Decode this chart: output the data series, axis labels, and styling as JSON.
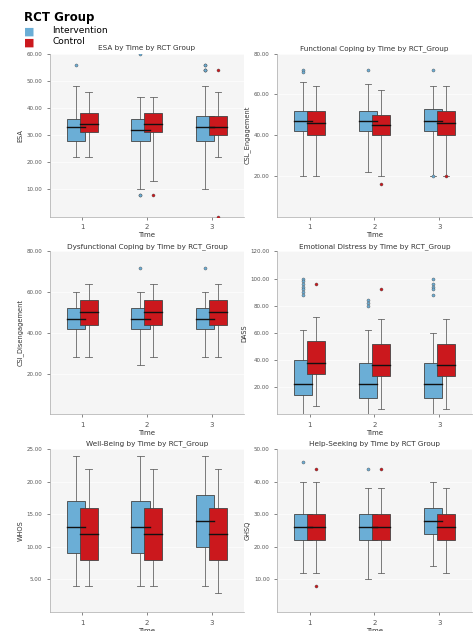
{
  "title": "RCT Group",
  "legend": [
    "Intervention",
    "Control"
  ],
  "colors": [
    "#6baed6",
    "#cb181d"
  ],
  "xlabel": "Time",
  "bg_color": "#f5f5f5",
  "subplots": [
    {
      "title": "ESA by Time by RCT Group",
      "ylabel": "ESA",
      "ylim": [
        0,
        60
      ],
      "yticks": [
        10.0,
        20.0,
        30.0,
        40.0,
        50.0,
        60.0
      ],
      "groups": [
        {
          "time": 1,
          "intervention": {
            "q1": 28,
            "median": 33,
            "q3": 36,
            "whisker_low": 22,
            "whisker_high": 48,
            "outliers": [
              56
            ]
          },
          "control": {
            "q1": 31,
            "median": 34,
            "q3": 38,
            "whisker_low": 22,
            "whisker_high": 46,
            "outliers": []
          }
        },
        {
          "time": 2,
          "intervention": {
            "q1": 28,
            "median": 32,
            "q3": 36,
            "whisker_low": 10,
            "whisker_high": 44,
            "outliers": [
              60,
              8,
              8
            ]
          },
          "control": {
            "q1": 31,
            "median": 34,
            "q3": 38,
            "whisker_low": 13,
            "whisker_high": 44,
            "outliers": [
              8
            ]
          }
        },
        {
          "time": 3,
          "intervention": {
            "q1": 28,
            "median": 33,
            "q3": 37,
            "whisker_low": 10,
            "whisker_high": 48,
            "outliers": [
              56,
              56,
              54,
              54,
              54
            ]
          },
          "control": {
            "q1": 30,
            "median": 33,
            "q3": 37,
            "whisker_low": 22,
            "whisker_high": 46,
            "outliers": [
              54,
              0
            ]
          }
        }
      ]
    },
    {
      "title": "Functional Coping by Time by RCT_Group",
      "ylabel": "CSL_Engagement",
      "ylim": [
        0,
        80
      ],
      "yticks": [
        20.0,
        40.0,
        60.0,
        80.0
      ],
      "groups": [
        {
          "time": 1,
          "intervention": {
            "q1": 42,
            "median": 47,
            "q3": 52,
            "whisker_low": 20,
            "whisker_high": 66,
            "outliers": [
              72,
              71
            ]
          },
          "control": {
            "q1": 40,
            "median": 46,
            "q3": 52,
            "whisker_low": 20,
            "whisker_high": 64,
            "outliers": []
          }
        },
        {
          "time": 2,
          "intervention": {
            "q1": 42,
            "median": 47,
            "q3": 52,
            "whisker_low": 22,
            "whisker_high": 65,
            "outliers": [
              72
            ]
          },
          "control": {
            "q1": 40,
            "median": 45,
            "q3": 50,
            "whisker_low": 20,
            "whisker_high": 62,
            "outliers": [
              16
            ]
          }
        },
        {
          "time": 3,
          "intervention": {
            "q1": 42,
            "median": 47,
            "q3": 53,
            "whisker_low": 20,
            "whisker_high": 64,
            "outliers": [
              72,
              20
            ]
          },
          "control": {
            "q1": 40,
            "median": 46,
            "q3": 52,
            "whisker_low": 20,
            "whisker_high": 64,
            "outliers": [
              20
            ]
          }
        }
      ]
    },
    {
      "title": "Dysfunctional Coping by Time by RCT_Group",
      "ylabel": "CSI_Disengagement",
      "ylim": [
        0,
        80
      ],
      "yticks": [
        20.0,
        40.0,
        60.0,
        80.0
      ],
      "groups": [
        {
          "time": 1,
          "intervention": {
            "q1": 42,
            "median": 47,
            "q3": 52,
            "whisker_low": 28,
            "whisker_high": 60,
            "outliers": []
          },
          "control": {
            "q1": 44,
            "median": 50,
            "q3": 56,
            "whisker_low": 28,
            "whisker_high": 64,
            "outliers": []
          }
        },
        {
          "time": 2,
          "intervention": {
            "q1": 42,
            "median": 47,
            "q3": 52,
            "whisker_low": 24,
            "whisker_high": 60,
            "outliers": [
              72
            ]
          },
          "control": {
            "q1": 44,
            "median": 50,
            "q3": 56,
            "whisker_low": 28,
            "whisker_high": 64,
            "outliers": []
          }
        },
        {
          "time": 3,
          "intervention": {
            "q1": 42,
            "median": 47,
            "q3": 52,
            "whisker_low": 28,
            "whisker_high": 60,
            "outliers": [
              72
            ]
          },
          "control": {
            "q1": 44,
            "median": 50,
            "q3": 56,
            "whisker_low": 28,
            "whisker_high": 64,
            "outliers": []
          }
        }
      ]
    },
    {
      "title": "Emotional Distress by Time by RCT_Group",
      "ylabel": "DASS",
      "ylim": [
        0,
        120
      ],
      "yticks": [
        20.0,
        40.0,
        60.0,
        80.0,
        100.0,
        120.0
      ],
      "groups": [
        {
          "time": 1,
          "intervention": {
            "q1": 14,
            "median": 22,
            "q3": 40,
            "whisker_low": 0,
            "whisker_high": 62,
            "outliers": [
              100,
              98,
              96,
              94,
              92,
              90,
              88
            ]
          },
          "control": {
            "q1": 30,
            "median": 38,
            "q3": 54,
            "whisker_low": 6,
            "whisker_high": 72,
            "outliers": [
              96
            ]
          }
        },
        {
          "time": 2,
          "intervention": {
            "q1": 12,
            "median": 22,
            "q3": 38,
            "whisker_low": 0,
            "whisker_high": 62,
            "outliers": [
              84,
              82,
              80
            ]
          },
          "control": {
            "q1": 28,
            "median": 36,
            "q3": 52,
            "whisker_low": 4,
            "whisker_high": 70,
            "outliers": [
              92
            ]
          }
        },
        {
          "time": 3,
          "intervention": {
            "q1": 12,
            "median": 22,
            "q3": 38,
            "whisker_low": 0,
            "whisker_high": 60,
            "outliers": [
              100,
              96,
              94,
              92,
              88
            ]
          },
          "control": {
            "q1": 28,
            "median": 36,
            "q3": 52,
            "whisker_low": 4,
            "whisker_high": 70,
            "outliers": []
          }
        }
      ]
    },
    {
      "title": "Well-Being by Time by RCT_Group",
      "ylabel": "WHOS",
      "ylim": [
        0,
        25
      ],
      "yticks": [
        5.0,
        10.0,
        15.0,
        20.0,
        25.0
      ],
      "groups": [
        {
          "time": 1,
          "intervention": {
            "q1": 9,
            "median": 13,
            "q3": 17,
            "whisker_low": 4,
            "whisker_high": 24,
            "outliers": []
          },
          "control": {
            "q1": 8,
            "median": 12,
            "q3": 16,
            "whisker_low": 4,
            "whisker_high": 22,
            "outliers": []
          }
        },
        {
          "time": 2,
          "intervention": {
            "q1": 9,
            "median": 13,
            "q3": 17,
            "whisker_low": 4,
            "whisker_high": 24,
            "outliers": []
          },
          "control": {
            "q1": 8,
            "median": 12,
            "q3": 16,
            "whisker_low": 4,
            "whisker_high": 22,
            "outliers": []
          }
        },
        {
          "time": 3,
          "intervention": {
            "q1": 10,
            "median": 14,
            "q3": 18,
            "whisker_low": 4,
            "whisker_high": 24,
            "outliers": []
          },
          "control": {
            "q1": 8,
            "median": 12,
            "q3": 16,
            "whisker_low": 3,
            "whisker_high": 22,
            "outliers": []
          }
        }
      ]
    },
    {
      "title": "Help-Seeking by Time by RCT Group",
      "ylabel": "GHSQ",
      "ylim": [
        0,
        50
      ],
      "yticks": [
        10.0,
        20.0,
        30.0,
        40.0,
        50.0
      ],
      "groups": [
        {
          "time": 1,
          "intervention": {
            "q1": 22,
            "median": 26,
            "q3": 30,
            "whisker_low": 12,
            "whisker_high": 40,
            "outliers": [
              46
            ]
          },
          "control": {
            "q1": 22,
            "median": 26,
            "q3": 30,
            "whisker_low": 12,
            "whisker_high": 40,
            "outliers": [
              44,
              8
            ]
          }
        },
        {
          "time": 2,
          "intervention": {
            "q1": 22,
            "median": 26,
            "q3": 30,
            "whisker_low": 10,
            "whisker_high": 38,
            "outliers": [
              44
            ]
          },
          "control": {
            "q1": 22,
            "median": 26,
            "q3": 30,
            "whisker_low": 12,
            "whisker_high": 38,
            "outliers": [
              44
            ]
          }
        },
        {
          "time": 3,
          "intervention": {
            "q1": 24,
            "median": 28,
            "q3": 32,
            "whisker_low": 14,
            "whisker_high": 40,
            "outliers": []
          },
          "control": {
            "q1": 22,
            "median": 26,
            "q3": 30,
            "whisker_low": 12,
            "whisker_high": 38,
            "outliers": []
          }
        }
      ]
    }
  ]
}
